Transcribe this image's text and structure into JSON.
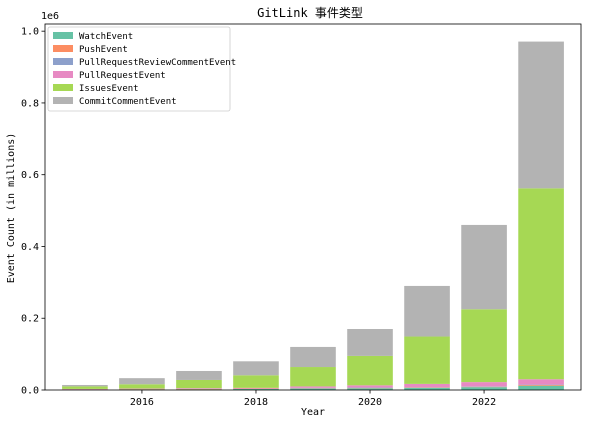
{
  "chart_data": {
    "type": "bar",
    "stacked": true,
    "title": "GitLink 事件类型",
    "xlabel": "Year",
    "ylabel": "Event Count (in millions)",
    "y_offset_label": "1e6",
    "categories": [
      2015,
      2016,
      2017,
      2018,
      2019,
      2020,
      2021,
      2022,
      2023
    ],
    "xlim": [
      2014.3,
      2023.7
    ],
    "xticks": [
      2016,
      2018,
      2020,
      2022
    ],
    "ylim": [
      0,
      1020000
    ],
    "yticks": [
      0,
      200000,
      400000,
      600000,
      800000,
      1000000
    ],
    "ytick_labels": [
      "0.0",
      "0.2",
      "0.4",
      "0.6",
      "0.8",
      "1.0"
    ],
    "grid": false,
    "legend_position": "top-left",
    "series": [
      {
        "name": "WatchEvent",
        "color": "#66c2a5",
        "values": [
          1000,
          2000,
          2000,
          3000,
          4000,
          5000,
          6000,
          8000,
          12000
        ]
      },
      {
        "name": "PushEvent",
        "color": "#fc8d62",
        "values": [
          1000,
          1000,
          1000,
          1000,
          1000,
          1000,
          1000,
          1000,
          2000
        ]
      },
      {
        "name": "PullRequestReviewCommentEvent",
        "color": "#8da0cb",
        "values": [
          0,
          0,
          0,
          0,
          1000,
          1000,
          1000,
          1000,
          1000
        ]
      },
      {
        "name": "PullRequestEvent",
        "color": "#e78ac3",
        "values": [
          1000,
          1000,
          2000,
          2000,
          4000,
          6000,
          9000,
          12000,
          15000
        ]
      },
      {
        "name": "IssuesEvent",
        "color": "#a6d854",
        "values": [
          7000,
          12000,
          23000,
          35000,
          54000,
          82000,
          132000,
          203000,
          532000
        ]
      },
      {
        "name": "CommitCommentEvent",
        "color": "#b3b3b3",
        "values": [
          4000,
          17000,
          25000,
          39000,
          56000,
          75000,
          141000,
          235000,
          409000
        ]
      }
    ]
  }
}
